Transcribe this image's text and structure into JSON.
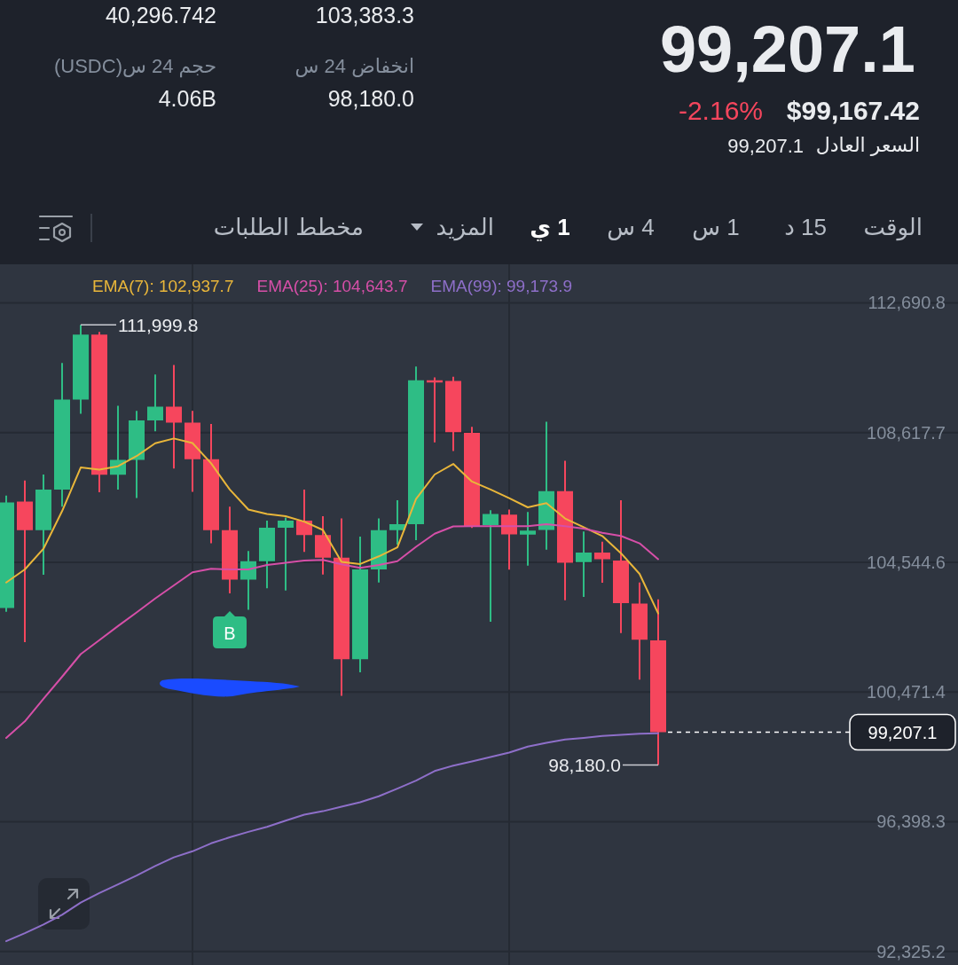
{
  "chart_data": {
    "type": "candlestick",
    "categories": [
      null,
      null,
      null,
      null,
      null,
      null,
      null,
      null,
      null,
      null,
      null,
      null,
      null,
      null,
      null,
      null,
      null,
      null,
      null,
      null,
      null,
      null,
      null,
      null,
      null,
      null,
      null,
      null,
      null,
      null,
      null,
      null,
      null,
      null,
      null,
      null
    ],
    "ohlc": [
      [
        103110,
        106640,
        102990,
        106420
      ],
      [
        106450,
        107110,
        102040,
        105550
      ],
      [
        105550,
        107300,
        104150,
        106830
      ],
      [
        106830,
        110800,
        106290,
        109650
      ],
      [
        109650,
        111999.8,
        109210,
        111690
      ],
      [
        111690,
        111780,
        106740,
        107290
      ],
      [
        107290,
        109460,
        106830,
        107760
      ],
      [
        107760,
        109300,
        106560,
        109000
      ],
      [
        109000,
        110440,
        108660,
        109430
      ],
      [
        109430,
        110740,
        107490,
        108930
      ],
      [
        108930,
        109300,
        106760,
        107780
      ],
      [
        107780,
        108890,
        105140,
        105550
      ],
      [
        105550,
        106290,
        103570,
        104000
      ],
      [
        104000,
        104900,
        103050,
        104580
      ],
      [
        104580,
        105850,
        103730,
        105630
      ],
      [
        105630,
        105950,
        103660,
        105850
      ],
      [
        105850,
        106830,
        104870,
        105400
      ],
      [
        105400,
        105990,
        104160,
        104690
      ],
      [
        104690,
        105920,
        100350,
        101500
      ],
      [
        101500,
        105350,
        101090,
        104320
      ],
      [
        104320,
        105920,
        103910,
        105550
      ],
      [
        105550,
        106490,
        105100,
        105740
      ],
      [
        105740,
        110690,
        105240,
        110260
      ],
      [
        110260,
        110350,
        108310,
        110190
      ],
      [
        110240,
        110370,
        108040,
        108630
      ],
      [
        108610,
        108800,
        105620,
        105680
      ],
      [
        105710,
        106180,
        102680,
        106060
      ],
      [
        106040,
        106200,
        104310,
        105420
      ],
      [
        105410,
        106120,
        104440,
        105540
      ],
      [
        105560,
        108960,
        104940,
        106780
      ],
      [
        106780,
        107730,
        103350,
        104530
      ],
      [
        104550,
        105510,
        103460,
        104850
      ],
      [
        104850,
        105190,
        103900,
        104640
      ],
      [
        104600,
        106490,
        102320,
        103260
      ],
      [
        103250,
        103910,
        100860,
        102110
      ],
      [
        102090,
        103383.3,
        98180.0,
        99207.1
      ]
    ],
    "colors": [
      "#2ebd85",
      "#f6465d",
      "#2ebd85",
      "#2ebd85",
      "#2ebd85",
      "#f6465d",
      "#2ebd85",
      "#2ebd85",
      "#2ebd85",
      "#f6465d",
      "#f6465d",
      "#f6465d",
      "#f6465d",
      "#2ebd85",
      "#2ebd85",
      "#2ebd85",
      "#f6465d",
      "#f6465d",
      "#f6465d",
      "#2ebd85",
      "#2ebd85",
      "#2ebd85",
      "#2ebd85",
      "#f6465d",
      "#f6465d",
      "#f6465d",
      "#2ebd85",
      "#f6465d",
      "#2ebd85",
      "#2ebd85",
      "#f6465d",
      "#2ebd85",
      "#f6465d",
      "#f6465d",
      "#f6465d",
      "#f6465d"
    ],
    "series": [
      {
        "type": "line",
        "name": "EMA(7): 102,937.7",
        "color": "#e9b63a",
        "values": [
          103910,
          104320,
          104970,
          106150,
          107520,
          107450,
          107560,
          107880,
          108280,
          108430,
          108290,
          107650,
          106830,
          106200,
          106060,
          105990,
          105820,
          105560,
          104560,
          104490,
          104730,
          105010,
          106530,
          107300,
          107630,
          107080,
          106830,
          106560,
          106270,
          106400,
          105920,
          105650,
          105370,
          104830,
          104180,
          102937.7
        ]
      },
      {
        "type": "line",
        "name": "EMA(25): 104,643.7",
        "color": "#d64fa8",
        "values": [
          99030,
          99550,
          100260,
          100950,
          101660,
          102100,
          102540,
          102970,
          103410,
          103820,
          104230,
          104340,
          104320,
          104320,
          104460,
          104530,
          104600,
          104620,
          104480,
          104370,
          104460,
          104580,
          105030,
          105440,
          105670,
          105680,
          105680,
          105680,
          105680,
          105740,
          105680,
          105600,
          105470,
          105370,
          105140,
          104643.7
        ]
      },
      {
        "type": "line",
        "name": "EMA(99): 99,173.9",
        "color": "#8e6fc9",
        "values": [
          92650,
          92900,
          93170,
          93480,
          93860,
          94160,
          94430,
          94710,
          95010,
          95280,
          95470,
          95720,
          95910,
          96080,
          96240,
          96430,
          96620,
          96730,
          96870,
          97010,
          97200,
          97440,
          97690,
          97990,
          98160,
          98290,
          98430,
          98570,
          98760,
          98880,
          98980,
          99030,
          99090,
          99130,
          99160,
          99173.9
        ]
      }
    ],
    "ylim": [
      91900,
      113900
    ],
    "yticks": [
      {
        "value": 112690.8,
        "label": "112,690.8"
      },
      {
        "value": 108617.7,
        "label": "108,617.7"
      },
      {
        "value": 104544.6,
        "label": "104,544.6"
      },
      {
        "value": 100471.4,
        "label": "100,471.4"
      },
      {
        "value": 96398.3,
        "label": "96,398.3"
      },
      {
        "value": 92325.2,
        "label": "92,325.2"
      }
    ],
    "tick_labels": "y",
    "grid": true,
    "legend": "top",
    "ref_lines": [
      {
        "axis": "y",
        "value": 99207.1,
        "label": "99,207.1",
        "line_style": "dashed",
        "color": "#ffffff"
      }
    ],
    "annotations": [
      "40,296.742",
      "103,383.3",
      "حجم 24 س(USDC)",
      "انخفاض 24 س",
      "4.06B",
      "98,180.0",
      "99,207.1",
      "-2.16%",
      "$99,167.42",
      "السعر العادل",
      "99,207.1",
      "الوقت",
      "15 د",
      "1 س",
      "4 س",
      "1 ي",
      "المزيد",
      "مخطط الطلبات",
      "B",
      "111,999.8",
      "98,180.0"
    ]
  }
}
